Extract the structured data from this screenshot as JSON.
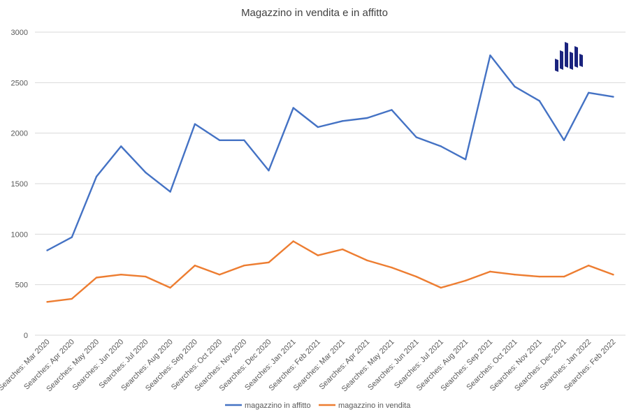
{
  "chart_data": {
    "type": "line",
    "title": "Magazzino in vendita e in affitto",
    "xlabel": "",
    "ylabel": "",
    "ylim": [
      0,
      3000
    ],
    "yticks": [
      0,
      500,
      1000,
      1500,
      2000,
      2500,
      3000
    ],
    "grid": true,
    "legend_position": "bottom",
    "categories": [
      "Searches: Mar 2020",
      "Searches: Apr 2020",
      "Searches: May 2020",
      "Searches: Jun 2020",
      "Searches: Jul 2020",
      "Searches: Aug 2020",
      "Searches: Sep 2020",
      "Searches: Oct 2020",
      "Searches: Nov 2020",
      "Searches: Dec 2020",
      "Searches: Jan 2021",
      "Searches: Feb 2021",
      "Searches: Mar 2021",
      "Searches: Apr 2021",
      "Searches: May 2021",
      "Searches: Jun 2021",
      "Searches: Jul 2021",
      "Searches: Aug 2021",
      "Searches: Sep 2021",
      "Searches: Oct 2021",
      "Searches: Nov 2021",
      "Searches: Dec 2021",
      "Searches: Jan 2022",
      "Searches: Feb 2022"
    ],
    "series": [
      {
        "name": "magazzino in affitto",
        "color": "#4472c4",
        "values": [
          840,
          970,
          1570,
          1870,
          1610,
          1420,
          2090,
          1930,
          1930,
          1630,
          2250,
          2060,
          2120,
          2150,
          2230,
          1960,
          1870,
          1740,
          2770,
          2460,
          2320,
          1930,
          2400,
          2360
        ]
      },
      {
        "name": "magazzino in vendita",
        "color": "#ed7d31",
        "values": [
          330,
          360,
          570,
          600,
          580,
          470,
          690,
          600,
          690,
          720,
          930,
          790,
          850,
          740,
          670,
          580,
          470,
          540,
          630,
          600,
          580,
          580,
          690,
          600
        ]
      }
    ]
  },
  "logo": {
    "color": "#1a237e",
    "icon": "bar-logo-icon"
  }
}
